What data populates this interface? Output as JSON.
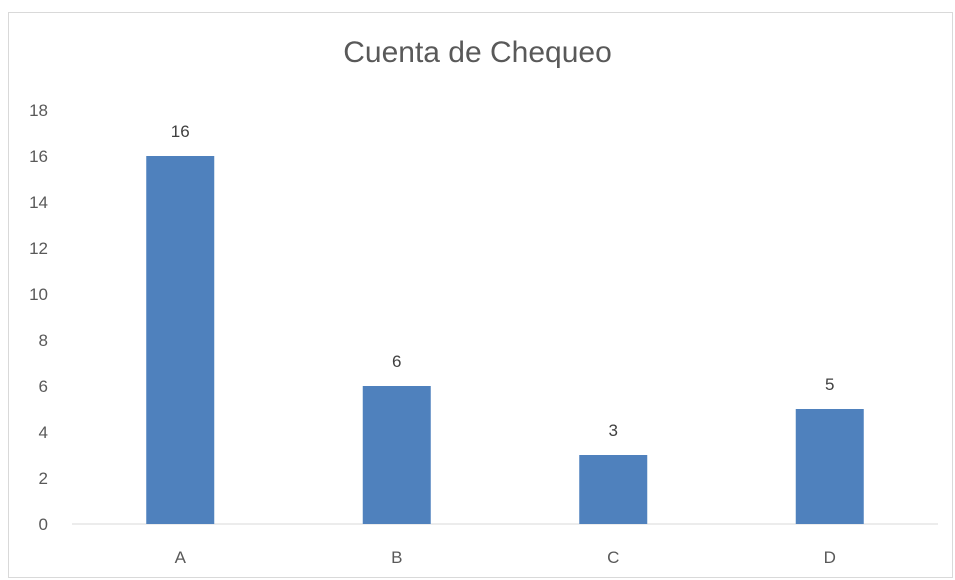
{
  "chart_data": {
    "type": "bar",
    "title": "Cuenta de Chequeo",
    "categories": [
      "A",
      "B",
      "C",
      "D"
    ],
    "values": [
      16,
      6,
      3,
      5
    ],
    "xlabel": "",
    "ylabel": "",
    "ylim": [
      0,
      18
    ],
    "yticks": [
      0,
      2,
      4,
      6,
      8,
      10,
      12,
      14,
      16,
      18
    ],
    "ytick_labels": [
      "0",
      "2",
      "4",
      "6",
      "8",
      "10",
      "12",
      "14",
      "16",
      "18"
    ],
    "data_labels": [
      "16",
      "6",
      "3",
      "5"
    ],
    "grid": false,
    "legend": "none",
    "bar_color": "#4f81bd",
    "axis_color": "#d9d9d9"
  }
}
